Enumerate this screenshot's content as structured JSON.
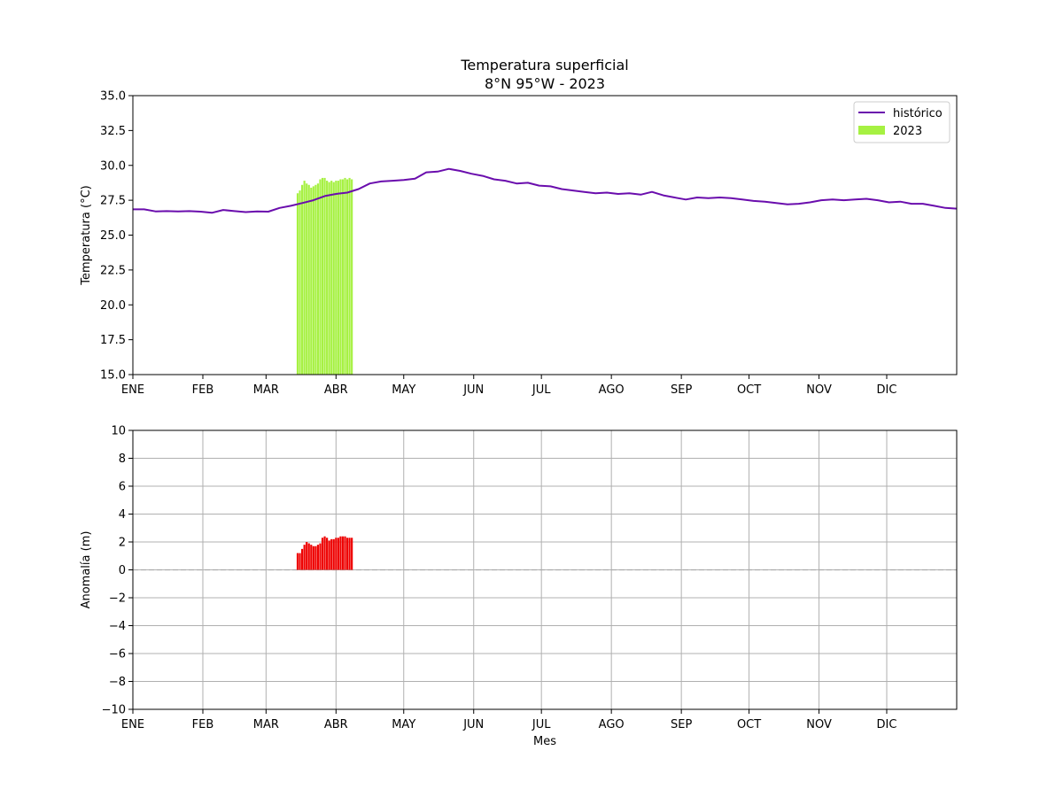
{
  "colors": {
    "historico": "#6a0dad",
    "bars_2023": "#a6f142",
    "anomaly": "#ee0000",
    "grid": "#b0b0b0",
    "zero_line": "#aaaaaa"
  },
  "chart_data": [
    {
      "type": "line",
      "title": "Temperatura superficial",
      "subtitle": "8°N 95°W - 2023",
      "xlabel": "",
      "ylabel": "Temperatura (°C)",
      "ylim": [
        15.0,
        35.0
      ],
      "xlim": [
        0,
        365
      ],
      "yticks": [
        15.0,
        17.5,
        20.0,
        22.5,
        25.0,
        27.5,
        30.0,
        32.5,
        35.0
      ],
      "ytick_labels": [
        "15.0",
        "17.5",
        "20.0",
        "22.5",
        "25.0",
        "27.5",
        "30.0",
        "32.5",
        "35.0"
      ],
      "month_ticks": [
        0,
        31,
        59,
        90,
        120,
        151,
        181,
        212,
        243,
        273,
        304,
        334
      ],
      "month_labels": [
        "ENE",
        "FEB",
        "MAR",
        "ABR",
        "MAY",
        "JUN",
        "JUL",
        "AGO",
        "SEP",
        "OCT",
        "NOV",
        "DIC"
      ],
      "grid": false,
      "legend_position": "top-right",
      "series": [
        {
          "name": "histórico",
          "type": "line",
          "x": [
            0,
            5,
            10,
            15,
            20,
            25,
            30,
            35,
            40,
            45,
            50,
            55,
            60,
            65,
            70,
            75,
            80,
            85,
            90,
            95,
            100,
            105,
            110,
            115,
            120,
            125,
            130,
            135,
            140,
            145,
            150,
            155,
            160,
            165,
            170,
            175,
            180,
            185,
            190,
            195,
            200,
            205,
            210,
            215,
            220,
            225,
            230,
            235,
            240,
            245,
            250,
            255,
            260,
            265,
            270,
            275,
            280,
            285,
            290,
            295,
            300,
            305,
            310,
            315,
            320,
            325,
            330,
            335,
            340,
            345,
            350,
            355,
            360,
            365
          ],
          "values": [
            26.85,
            26.85,
            26.7,
            26.72,
            26.7,
            26.72,
            26.68,
            26.6,
            26.8,
            26.72,
            26.65,
            26.7,
            26.68,
            26.95,
            27.1,
            27.3,
            27.5,
            27.8,
            27.95,
            28.05,
            28.3,
            28.7,
            28.85,
            28.9,
            28.95,
            29.05,
            29.5,
            29.55,
            29.75,
            29.6,
            29.4,
            29.25,
            29.0,
            28.9,
            28.7,
            28.75,
            28.55,
            28.5,
            28.3,
            28.2,
            28.1,
            28.0,
            28.05,
            27.95,
            28.0,
            27.9,
            28.1,
            27.85,
            27.7,
            27.55,
            27.7,
            27.65,
            27.7,
            27.65,
            27.55,
            27.45,
            27.4,
            27.3,
            27.2,
            27.25,
            27.35,
            27.5,
            27.55,
            27.5,
            27.55,
            27.6,
            27.5,
            27.35,
            27.4,
            27.25,
            27.25,
            27.1,
            26.95,
            26.9
          ]
        },
        {
          "name": "2023",
          "type": "bar",
          "x": [
            73,
            74,
            75,
            76,
            77,
            78,
            79,
            80,
            81,
            82,
            83,
            84,
            85,
            86,
            87,
            88,
            89,
            90,
            91,
            92,
            93,
            94,
            95,
            96,
            97
          ],
          "values": [
            28.0,
            28.2,
            28.6,
            28.9,
            28.7,
            28.6,
            28.4,
            28.5,
            28.6,
            28.7,
            29.0,
            29.1,
            29.1,
            28.9,
            28.8,
            28.9,
            28.8,
            28.9,
            28.9,
            29.0,
            29.0,
            29.1,
            29.0,
            29.1,
            29.0
          ]
        }
      ]
    },
    {
      "type": "bar",
      "title": "",
      "xlabel": "Mes",
      "ylabel": "Anomalía (m)",
      "ylim": [
        -10,
        10
      ],
      "xlim": [
        0,
        365
      ],
      "yticks": [
        -10,
        -8,
        -6,
        -4,
        -2,
        0,
        2,
        4,
        6,
        8,
        10
      ],
      "ytick_labels": [
        "−10",
        "−8",
        "−6",
        "−4",
        "−2",
        "0",
        "2",
        "4",
        "6",
        "8",
        "10"
      ],
      "month_ticks": [
        0,
        31,
        59,
        90,
        120,
        151,
        181,
        212,
        243,
        273,
        304,
        334
      ],
      "month_labels": [
        "ENE",
        "FEB",
        "MAR",
        "ABR",
        "MAY",
        "JUN",
        "JUL",
        "AGO",
        "SEP",
        "OCT",
        "NOV",
        "DIC"
      ],
      "grid": true,
      "zero_line": "dashed",
      "series": [
        {
          "type": "bar",
          "x": [
            73,
            74,
            75,
            76,
            77,
            78,
            79,
            80,
            81,
            82,
            83,
            84,
            85,
            86,
            87,
            88,
            89,
            90,
            91,
            92,
            93,
            94,
            95,
            96,
            97
          ],
          "values": [
            1.2,
            1.2,
            1.5,
            1.8,
            2.0,
            1.9,
            1.8,
            1.7,
            1.7,
            1.8,
            1.9,
            2.3,
            2.4,
            2.3,
            2.1,
            2.2,
            2.2,
            2.3,
            2.3,
            2.4,
            2.4,
            2.4,
            2.3,
            2.3,
            2.3
          ]
        }
      ]
    }
  ]
}
